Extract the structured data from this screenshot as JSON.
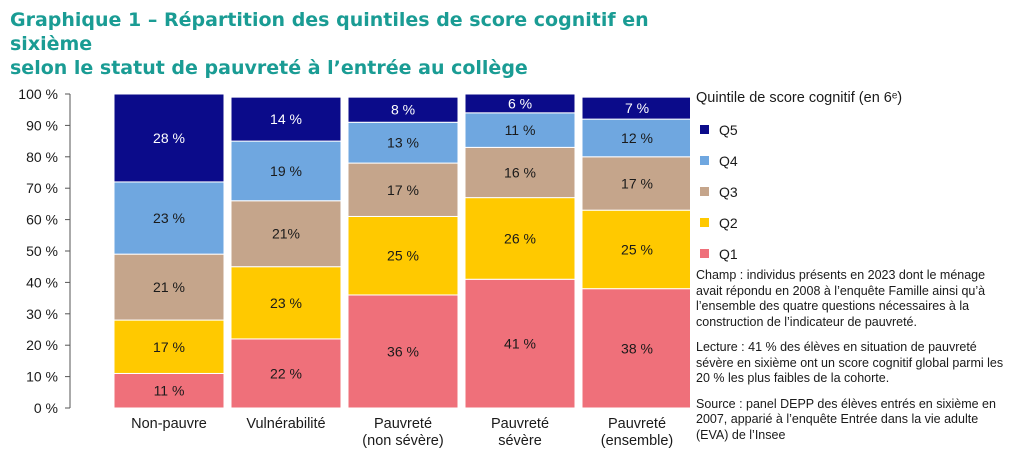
{
  "title_line1": "Graphique 1 – Répartition des quintiles de score cognitif en sixième",
  "title_line2": "selon le statut de pauvreté à l’entrée au collège",
  "legend": {
    "title": "Quintile de score cognitif (en 6ᵉ)",
    "items": [
      {
        "label": "Q5",
        "color": "#0b0b8a"
      },
      {
        "label": "Q4",
        "color": "#6fa7e0"
      },
      {
        "label": "Q3",
        "color": "#c5a58b"
      },
      {
        "label": "Q2",
        "color": "#ffc900"
      },
      {
        "label": "Q1",
        "color": "#ef707a"
      }
    ]
  },
  "notes": {
    "champ": "Champ : individus présents en 2023 dont le ménage avait répondu en 2008 à l’enquête Famille ainsi qu’à l’ensemble des quatre questions nécessaires à la construction de l’indicateur de pauvreté.",
    "lecture": "Lecture : 41 % des élèves en situation de pauvreté sévère en sixième ont un score cognitif global parmi les 20 % les plus faibles de la cohorte.",
    "source": "Source : panel DEPP des élèves entrés en sixième en 2007, apparié à l’enquête Entrée dans la vie adulte (EVA) de l’Insee"
  },
  "chart_data": {
    "type": "bar",
    "stacked": true,
    "categories": [
      [
        "Non-pauvre"
      ],
      [
        "Vulnérabilité"
      ],
      [
        "Pauvreté",
        "(non sévère)"
      ],
      [
        "Pauvreté",
        "sévère"
      ],
      [
        "Pauvreté",
        "(ensemble)"
      ]
    ],
    "y_ticks": [
      "0 %",
      "10 %",
      "20 %",
      "30 %",
      "40 %",
      "50 %",
      "60 %",
      "70 %",
      "80 %",
      "90 %",
      "100 %"
    ],
    "ylim": [
      0,
      100
    ],
    "series": [
      {
        "name": "Q1",
        "color": "#ef707a",
        "values": [
          11,
          22,
          36,
          41,
          38
        ],
        "labels": [
          "11 %",
          "22 %",
          "36 %",
          "41 %",
          "38 %"
        ]
      },
      {
        "name": "Q2",
        "color": "#ffc900",
        "values": [
          17,
          23,
          25,
          26,
          25
        ],
        "labels": [
          "17 %",
          "23 %",
          "25 %",
          "26 %",
          "25 %"
        ]
      },
      {
        "name": "Q3",
        "color": "#c5a58b",
        "values": [
          21,
          21,
          17,
          16,
          17
        ],
        "labels": [
          "21 %",
          "21%",
          "17 %",
          "16 %",
          "17 %"
        ]
      },
      {
        "name": "Q4",
        "color": "#6fa7e0",
        "values": [
          23,
          19,
          13,
          11,
          12
        ],
        "labels": [
          "23 %",
          "19 %",
          "13 %",
          "11 %",
          "12 %"
        ]
      },
      {
        "name": "Q5",
        "color": "#0b0b8a",
        "values": [
          28,
          14,
          8,
          6,
          7
        ],
        "labels": [
          "28 %",
          "14 %",
          "8 %",
          "6 %",
          "7 %"
        ]
      }
    ]
  }
}
